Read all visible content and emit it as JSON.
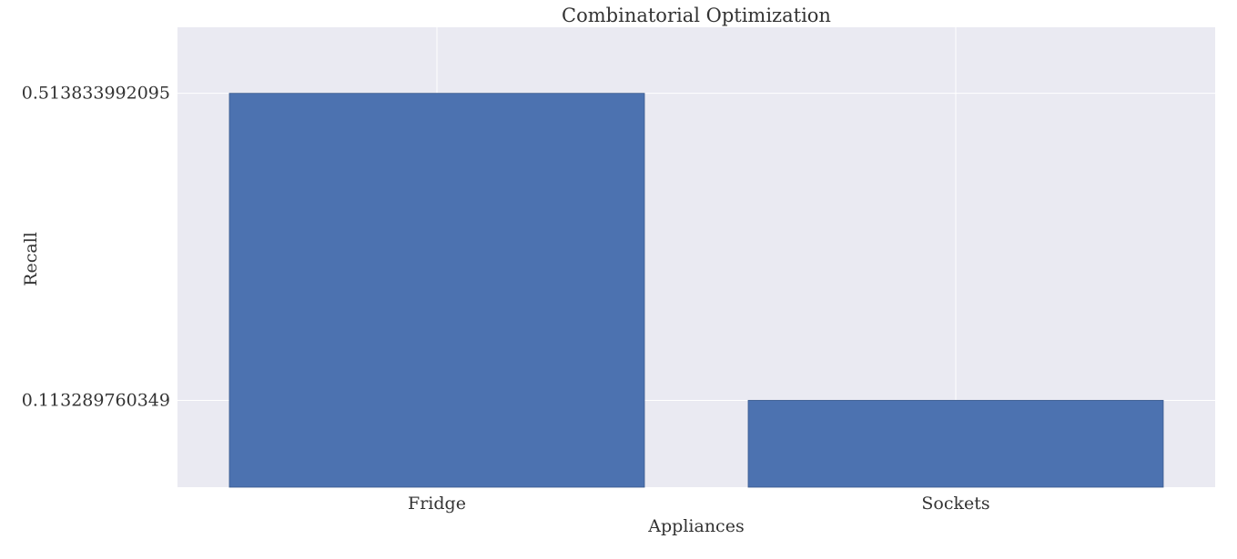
{
  "chart_data": {
    "type": "bar",
    "title": "Combinatorial Optimization",
    "xlabel": "Appliances",
    "ylabel": "Recall",
    "categories": [
      "Fridge",
      "Sockets"
    ],
    "values": [
      0.513833992095,
      0.113289760349
    ],
    "yticks": [
      0.513833992095,
      0.113289760349
    ],
    "ytick_labels": [
      "0.513833992095",
      "0.113289760349"
    ],
    "ylim": [
      0,
      0.6
    ],
    "grid": true,
    "legend": "none",
    "colors": {
      "bar": "#4c72b0",
      "background": "#eaeaf2",
      "grid": "#ffffff"
    }
  }
}
